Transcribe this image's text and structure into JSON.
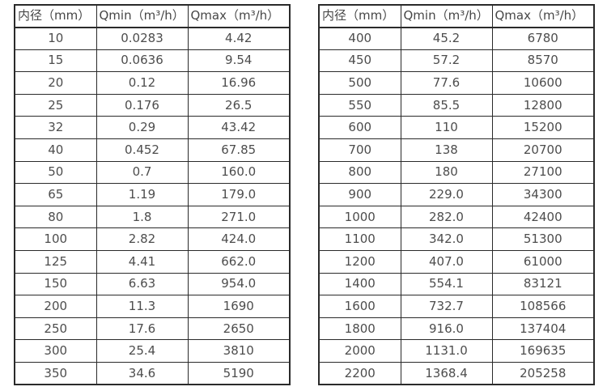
{
  "tables": [
    {
      "name": "flow-range-small-diameters",
      "headers": [
        "内径（mm）",
        "Qmin（m³/h）",
        "Qmax（m³/h）"
      ],
      "rows": [
        [
          "10",
          "0.0283",
          "4.42"
        ],
        [
          "15",
          "0.0636",
          "9.54"
        ],
        [
          "20",
          "0.12",
          "16.96"
        ],
        [
          "25",
          "0.176",
          "26.5"
        ],
        [
          "32",
          "0.29",
          "43.42"
        ],
        [
          "40",
          "0.452",
          "67.85"
        ],
        [
          "50",
          "0.7",
          "160.0"
        ],
        [
          "65",
          "1.19",
          "179.0"
        ],
        [
          "80",
          "1.8",
          "271.0"
        ],
        [
          "100",
          "2.82",
          "424.0"
        ],
        [
          "125",
          "4.41",
          "662.0"
        ],
        [
          "150",
          "6.63",
          "954.0"
        ],
        [
          "200",
          "11.3",
          "1690"
        ],
        [
          "250",
          "17.6",
          "2650"
        ],
        [
          "300",
          "25.4",
          "3810"
        ],
        [
          "350",
          "34.6",
          "5190"
        ]
      ]
    },
    {
      "name": "flow-range-large-diameters",
      "headers": [
        "内径（mm）",
        "Qmin（m³/h）",
        "Qmax（m³/h）"
      ],
      "rows": [
        [
          "400",
          "45.2",
          "6780"
        ],
        [
          "450",
          "57.2",
          "8570"
        ],
        [
          "500",
          "77.6",
          "10600"
        ],
        [
          "550",
          "85.5",
          "12800"
        ],
        [
          "600",
          "110",
          "15200"
        ],
        [
          "700",
          "138",
          "20700"
        ],
        [
          "800",
          "180",
          "27100"
        ],
        [
          "900",
          "229.0",
          "34300"
        ],
        [
          "1000",
          "282.0",
          "42400"
        ],
        [
          "1100",
          "342.0",
          "51300"
        ],
        [
          "1200",
          "407.0",
          "61000"
        ],
        [
          "1400",
          "554.1",
          "83121"
        ],
        [
          "1600",
          "732.7",
          "108566"
        ],
        [
          "1800",
          "916.0",
          "137404"
        ],
        [
          "2000",
          "1131.0",
          "169635"
        ],
        [
          "2200",
          "1368.4",
          "205258"
        ]
      ]
    }
  ],
  "colors": {
    "border": "#2a2a2a",
    "text": "#4d4d4d",
    "background": "#ffffff"
  }
}
